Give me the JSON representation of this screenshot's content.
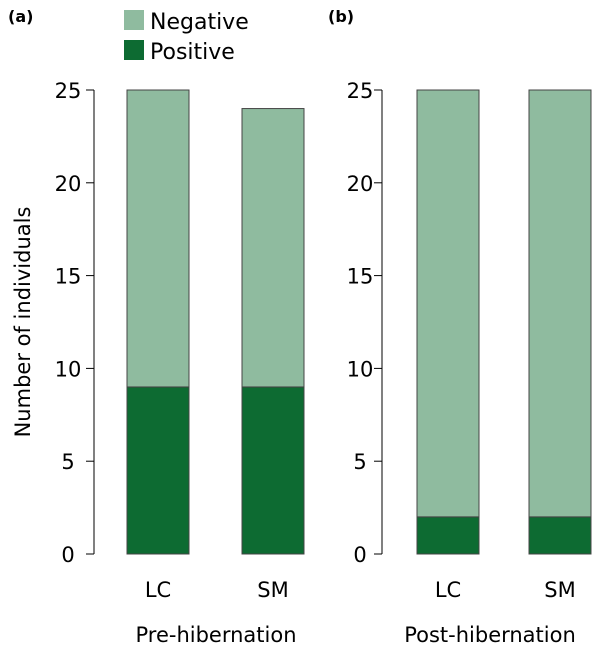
{
  "legend": {
    "negative_label": "Negative",
    "positive_label": "Positive"
  },
  "colors": {
    "negative": "#8fbb9f",
    "positive": "#0d6b32"
  },
  "ylabel": "Number of individuals",
  "chart_data": [
    {
      "type": "bar",
      "stacked": true,
      "panel_label": "(a)",
      "xlabel": "Pre-hibernation",
      "categories": [
        "LC",
        "SM"
      ],
      "series": [
        {
          "name": "Positive",
          "values": [
            9,
            9
          ]
        },
        {
          "name": "Negative",
          "values": [
            16,
            15
          ]
        }
      ],
      "ylabel": "Number of individuals",
      "ylim": [
        0,
        25
      ],
      "yticks": [
        "0",
        "5",
        "10",
        "15",
        "20",
        "25"
      ],
      "grid": false,
      "legend_position": "top"
    },
    {
      "type": "bar",
      "stacked": true,
      "panel_label": "(b)",
      "xlabel": "Post-hibernation",
      "categories": [
        "LC",
        "SM"
      ],
      "series": [
        {
          "name": "Positive",
          "values": [
            2,
            2
          ]
        },
        {
          "name": "Negative",
          "values": [
            23,
            23
          ]
        }
      ],
      "ylabel": "",
      "ylim": [
        0,
        25
      ],
      "yticks": [
        "0",
        "5",
        "10",
        "15",
        "20",
        "25"
      ],
      "grid": false,
      "legend_position": "top"
    }
  ]
}
